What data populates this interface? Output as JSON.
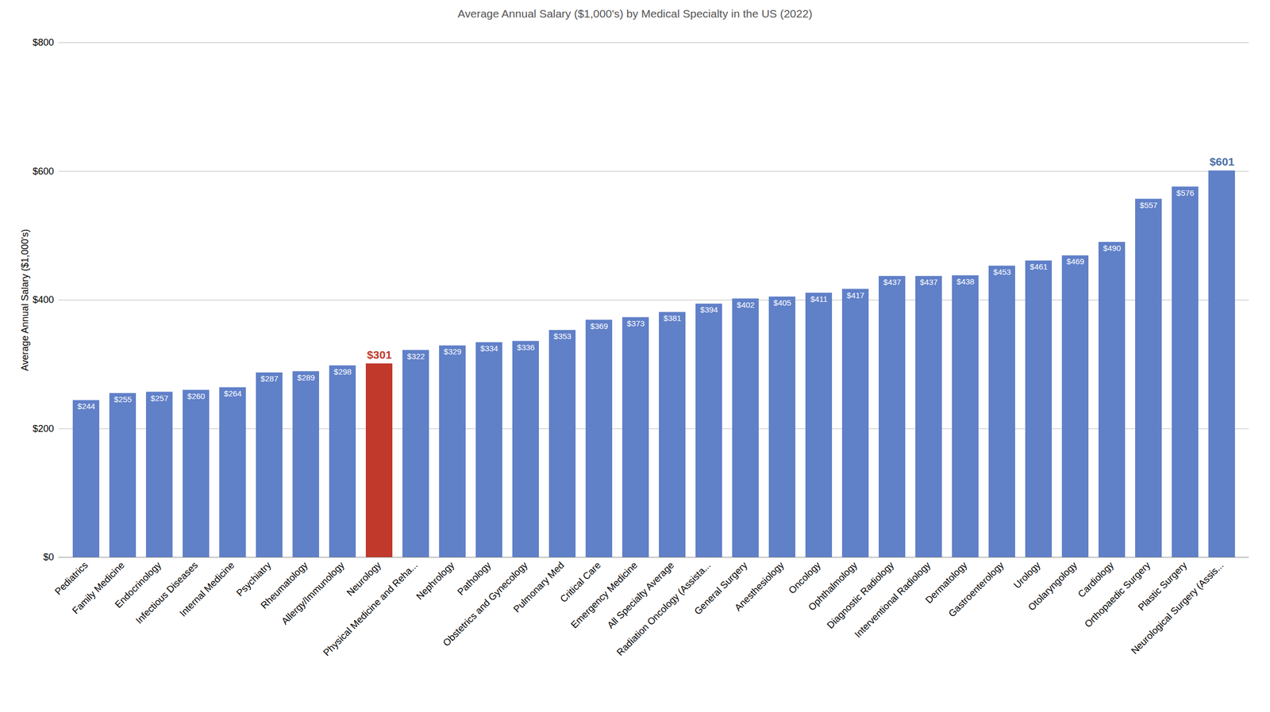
{
  "chart_data": {
    "type": "bar",
    "title": "Average Annual Salary ($1,000's) by Medical Specialty in the US (2022)",
    "ylabel": "Average Annual Salary ($1,000's)",
    "categories": [
      "Pediatrics",
      "Family Medicine",
      "Endocrinology",
      "Infectious Diseases",
      "Internal Medicine",
      "Psychiatry",
      "Rheumatology",
      "Allergy/Immunology",
      "Neurology",
      "Physical Medicine and Reha...",
      "Nephrology",
      "Pathology",
      "Obstetrics and Gynecology",
      "Pulmonary Med",
      "Critical Care",
      "Emergency Medicine",
      "All Specialty Average",
      "Radiation Oncology (Assista...",
      "General Surgery",
      "Anesthesiology",
      "Oncology",
      "Ophthalmology",
      "Diagnostic Radiology",
      "Interventional Radiology",
      "Dermatology",
      "Gastroenterology",
      "Urology",
      "Otolaryngology",
      "Cardiology",
      "Orthopaedic Surgery",
      "Plastic Surgery",
      "Neurological Surgery (Assis..."
    ],
    "values": [
      244,
      255,
      257,
      260,
      264,
      287,
      289,
      298,
      301,
      322,
      329,
      334,
      336,
      353,
      369,
      373,
      381,
      394,
      402,
      405,
      411,
      417,
      437,
      437,
      438,
      453,
      461,
      469,
      490,
      557,
      576,
      601
    ],
    "value_labels": [
      "$244",
      "$255",
      "$257",
      "$260",
      "$264",
      "$287",
      "$289",
      "$298",
      "$301",
      "$322",
      "$329",
      "$334",
      "$336",
      "$353",
      "$369",
      "$373",
      "$381",
      "$394",
      "$402",
      "$405",
      "$411",
      "$417",
      "$437",
      "$437",
      "$438",
      "$453",
      "$461",
      "$469",
      "$490",
      "$557",
      "$576",
      "$601"
    ],
    "colors": [
      "#6080c8",
      "#6080c8",
      "#6080c8",
      "#6080c8",
      "#6080c8",
      "#6080c8",
      "#6080c8",
      "#6080c8",
      "#c0392b",
      "#6080c8",
      "#6080c8",
      "#6080c8",
      "#6080c8",
      "#6080c8",
      "#6080c8",
      "#6080c8",
      "#6080c8",
      "#6080c8",
      "#6080c8",
      "#6080c8",
      "#6080c8",
      "#6080c8",
      "#6080c8",
      "#6080c8",
      "#6080c8",
      "#6080c8",
      "#6080c8",
      "#6080c8",
      "#6080c8",
      "#6080c8",
      "#6080c8",
      "#6080c8"
    ],
    "ylim": [
      0,
      800
    ],
    "yticks": [
      {
        "value": 0,
        "label": "$0"
      },
      {
        "value": 200,
        "label": "$200"
      },
      {
        "value": 400,
        "label": "$400"
      },
      {
        "value": 600,
        "label": "$600"
      },
      {
        "value": 800,
        "label": "$800"
      }
    ],
    "grid": true,
    "data_labels": true
  }
}
